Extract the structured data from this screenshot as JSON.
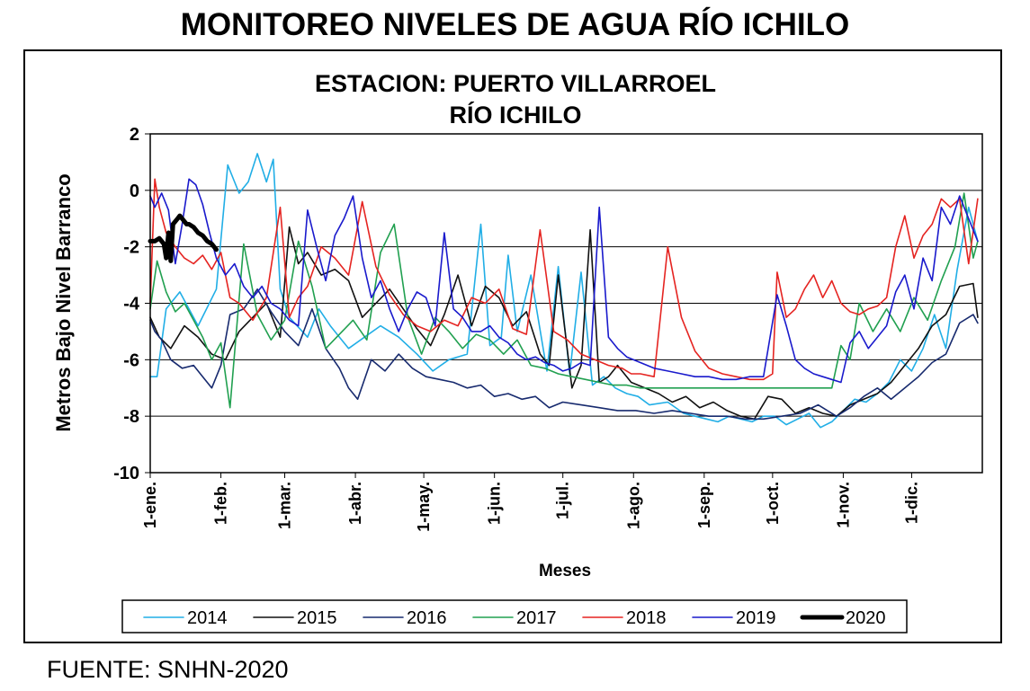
{
  "page": {
    "title": "MONITOREO NIVELES DE AGUA RÍO ICHILO",
    "source": "FUENTE: SNHN-2020"
  },
  "chart_data": {
    "type": "line",
    "title": "ESTACION: PUERTO VILLARROEL",
    "subtitle": "RÍO ICHILO",
    "xlabel": "Meses",
    "ylabel": "Metros Bajo Nivel Barranco",
    "ylim": [
      -10,
      2
    ],
    "yticks": [
      2,
      0,
      -2,
      -4,
      -6,
      -8,
      -10
    ],
    "xlim": [
      1,
      366
    ],
    "x_unit": "day of year",
    "month_ticks": [
      {
        "label": "1-ene.",
        "day": 1
      },
      {
        "label": "1-feb.",
        "day": 32
      },
      {
        "label": "1-mar.",
        "day": 60
      },
      {
        "label": "1-abr.",
        "day": 91
      },
      {
        "label": "1-may.",
        "day": 121
      },
      {
        "label": "1-jun.",
        "day": 152
      },
      {
        "label": "1-jul.",
        "day": 182
      },
      {
        "label": "1-ago.",
        "day": 213
      },
      {
        "label": "1-sep.",
        "day": 244
      },
      {
        "label": "1-oct.",
        "day": 274
      },
      {
        "label": "1-nov.",
        "day": 305
      },
      {
        "label": "1-dic.",
        "day": 335
      }
    ],
    "grid": "horizontal",
    "legend_position": "bottom",
    "series": [
      {
        "name": "2014",
        "color": "#21aee6",
        "width": 1.6,
        "x": [
          1,
          4,
          8,
          14,
          22,
          30,
          35,
          40,
          44,
          48,
          52,
          55,
          58,
          62,
          70,
          75,
          80,
          88,
          95,
          102,
          110,
          118,
          125,
          132,
          140,
          146,
          150,
          155,
          158,
          162,
          168,
          175,
          180,
          185,
          190,
          195,
          200,
          205,
          210,
          215,
          220,
          228,
          235,
          240,
          245,
          250,
          255,
          260,
          265,
          270,
          275,
          280,
          285,
          290,
          295,
          300,
          305,
          310,
          315,
          320,
          325,
          330,
          335,
          340,
          345,
          350,
          355,
          360,
          364
        ],
        "y": [
          -6.6,
          -6.6,
          -4.2,
          -3.6,
          -4.8,
          -3.5,
          0.9,
          -0.1,
          0.3,
          1.3,
          0.3,
          1.1,
          -3.5,
          -4.5,
          -5.2,
          -4.2,
          -4.8,
          -5.6,
          -5.2,
          -4.8,
          -5.2,
          -5.8,
          -6.4,
          -6.0,
          -5.8,
          -1.2,
          -5.5,
          -5.2,
          -2.3,
          -5.0,
          -3.0,
          -6.4,
          -2.7,
          -6.5,
          -2.9,
          -6.9,
          -6.6,
          -7.0,
          -7.2,
          -7.3,
          -7.6,
          -7.5,
          -7.9,
          -8.0,
          -8.1,
          -8.2,
          -8.0,
          -8.1,
          -8.2,
          -8.0,
          -8.0,
          -8.3,
          -8.1,
          -7.9,
          -8.4,
          -8.2,
          -7.8,
          -7.4,
          -7.5,
          -7.2,
          -6.8,
          -6.0,
          -6.4,
          -5.6,
          -4.4,
          -5.6,
          -2.8,
          -0.6,
          -1.8
        ]
      },
      {
        "name": "2015",
        "color": "#111111",
        "width": 1.6,
        "x": [
          1,
          5,
          10,
          16,
          22,
          28,
          34,
          40,
          46,
          52,
          58,
          62,
          66,
          70,
          76,
          82,
          88,
          94,
          100,
          106,
          112,
          118,
          124,
          130,
          136,
          142,
          148,
          154,
          160,
          166,
          172,
          176,
          180,
          186,
          190,
          194,
          198,
          202,
          206,
          212,
          218,
          224,
          230,
          236,
          242,
          248,
          254,
          260,
          266,
          272,
          278,
          284,
          290,
          296,
          302,
          308,
          314,
          320,
          326,
          332,
          338,
          344,
          350,
          356,
          362,
          364
        ],
        "y": [
          -4.5,
          -5.2,
          -5.6,
          -4.8,
          -5.2,
          -5.8,
          -6.0,
          -5.0,
          -4.5,
          -4.0,
          -5.2,
          -1.3,
          -2.6,
          -2.2,
          -3.0,
          -2.8,
          -3.2,
          -4.5,
          -4.0,
          -3.5,
          -4.2,
          -4.9,
          -5.5,
          -4.4,
          -3.0,
          -4.8,
          -3.4,
          -3.8,
          -4.8,
          -4.3,
          -5.8,
          -6.2,
          -3.0,
          -7.0,
          -6.2,
          -1.4,
          -6.8,
          -6.6,
          -6.2,
          -6.8,
          -7.0,
          -7.2,
          -7.5,
          -7.3,
          -7.7,
          -7.5,
          -7.8,
          -8.0,
          -8.1,
          -7.3,
          -7.4,
          -7.9,
          -7.7,
          -7.9,
          -8.0,
          -7.6,
          -7.4,
          -7.2,
          -6.8,
          -6.2,
          -5.6,
          -4.8,
          -4.4,
          -3.4,
          -3.3,
          -4.5
        ]
      },
      {
        "name": "2016",
        "color": "#172a6e",
        "width": 1.6,
        "x": [
          1,
          3,
          6,
          10,
          15,
          20,
          24,
          28,
          32,
          36,
          42,
          48,
          54,
          60,
          66,
          72,
          78,
          84,
          88,
          92,
          98,
          104,
          110,
          116,
          122,
          128,
          134,
          140,
          146,
          152,
          158,
          164,
          170,
          176,
          182,
          190,
          198,
          206,
          214,
          222,
          230,
          238,
          246,
          254,
          262,
          270,
          278,
          286,
          294,
          302,
          308,
          314,
          320,
          326,
          332,
          338,
          344,
          350,
          356,
          362,
          364
        ],
        "y": [
          -4.6,
          -5.0,
          -5.3,
          -6.0,
          -6.3,
          -6.2,
          -6.6,
          -7.0,
          -6.2,
          -4.4,
          -4.2,
          -3.5,
          -4.3,
          -5.0,
          -5.5,
          -4.2,
          -5.6,
          -6.3,
          -7.0,
          -7.4,
          -6.0,
          -6.4,
          -5.8,
          -6.3,
          -6.6,
          -6.7,
          -6.8,
          -7.0,
          -6.9,
          -7.3,
          -7.2,
          -7.4,
          -7.3,
          -7.7,
          -7.5,
          -7.6,
          -7.7,
          -7.8,
          -7.8,
          -7.9,
          -7.8,
          -7.9,
          -8.0,
          -8.0,
          -8.1,
          -8.1,
          -8.0,
          -7.9,
          -7.6,
          -8.0,
          -7.7,
          -7.3,
          -7.0,
          -7.4,
          -7.0,
          -6.6,
          -6.1,
          -5.8,
          -4.7,
          -4.4,
          -4.7
        ]
      },
      {
        "name": "2017",
        "color": "#21a050",
        "width": 1.6,
        "x": [
          1,
          4,
          8,
          12,
          16,
          20,
          24,
          28,
          32,
          36,
          42,
          48,
          54,
          60,
          66,
          72,
          78,
          84,
          90,
          96,
          102,
          108,
          114,
          120,
          126,
          132,
          138,
          144,
          150,
          156,
          162,
          168,
          174,
          180,
          186,
          192,
          198,
          204,
          210,
          216,
          222,
          228,
          234,
          240,
          246,
          252,
          258,
          264,
          270,
          276,
          282,
          288,
          294,
          300,
          304,
          308,
          312,
          318,
          324,
          330,
          336,
          342,
          348,
          354,
          358,
          362,
          364
        ],
        "y": [
          -4.2,
          -2.5,
          -3.6,
          -4.3,
          -4.0,
          -4.6,
          -5.2,
          -6.0,
          -5.4,
          -7.7,
          -1.9,
          -4.4,
          -5.3,
          -4.6,
          -1.8,
          -3.4,
          -5.6,
          -5.1,
          -4.6,
          -5.3,
          -2.2,
          -1.2,
          -4.5,
          -5.8,
          -4.5,
          -5.0,
          -5.6,
          -5.1,
          -5.3,
          -5.8,
          -5.3,
          -6.2,
          -6.3,
          -6.5,
          -6.6,
          -6.7,
          -6.8,
          -6.9,
          -6.9,
          -7.0,
          -7.0,
          -7.0,
          -7.0,
          -7.0,
          -7.0,
          -7.0,
          -7.0,
          -7.0,
          -7.0,
          -7.0,
          -7.0,
          -7.0,
          -7.0,
          -7.0,
          -5.5,
          -6.0,
          -4.0,
          -5.0,
          -4.2,
          -5.0,
          -3.8,
          -4.6,
          -3.2,
          -2.0,
          -0.1,
          -2.4,
          -1.8
        ]
      },
      {
        "name": "2018",
        "color": "#e52421",
        "width": 1.6,
        "x": [
          1,
          3,
          5,
          8,
          12,
          16,
          20,
          24,
          28,
          32,
          36,
          40,
          46,
          52,
          58,
          62,
          66,
          70,
          76,
          82,
          88,
          94,
          100,
          106,
          112,
          118,
          124,
          130,
          136,
          142,
          148,
          154,
          160,
          166,
          172,
          178,
          184,
          190,
          196,
          202,
          208,
          212,
          216,
          222,
          228,
          234,
          240,
          246,
          252,
          258,
          264,
          270,
          274,
          276,
          280,
          284,
          288,
          292,
          296,
          300,
          304,
          308,
          312,
          316,
          320,
          324,
          328,
          332,
          336,
          340,
          344,
          348,
          352,
          356,
          360,
          364
        ],
        "y": [
          -4.0,
          0.4,
          -0.6,
          -1.5,
          -2.0,
          -2.4,
          -2.6,
          -2.3,
          -2.8,
          -2.2,
          -3.8,
          -4.0,
          -4.6,
          -3.8,
          -0.6,
          -4.5,
          -3.8,
          -3.4,
          -2.0,
          -2.4,
          -3.0,
          -0.4,
          -2.7,
          -3.7,
          -4.4,
          -4.8,
          -5.0,
          -4.6,
          -4.8,
          -3.8,
          -4.0,
          -3.5,
          -4.9,
          -5.1,
          -1.4,
          -5.0,
          -5.3,
          -5.8,
          -6.0,
          -6.2,
          -6.3,
          -6.5,
          -6.5,
          -6.6,
          -2.0,
          -4.5,
          -5.7,
          -6.3,
          -6.5,
          -6.6,
          -6.7,
          -6.7,
          -6.5,
          -2.9,
          -4.5,
          -4.2,
          -3.5,
          -3.0,
          -3.8,
          -3.2,
          -4.0,
          -4.3,
          -4.4,
          -4.2,
          -4.1,
          -3.8,
          -2.0,
          -0.9,
          -2.4,
          -1.6,
          -1.2,
          -0.3,
          -0.6,
          -0.3,
          -2.6,
          -0.3
        ]
      },
      {
        "name": "2019",
        "color": "#1a1acc",
        "width": 1.6,
        "x": [
          1,
          3,
          6,
          9,
          12,
          15,
          18,
          21,
          24,
          27,
          30,
          34,
          38,
          42,
          46,
          50,
          54,
          58,
          62,
          66,
          70,
          74,
          78,
          82,
          86,
          90,
          94,
          98,
          102,
          106,
          110,
          114,
          118,
          122,
          126,
          130,
          134,
          138,
          142,
          146,
          150,
          154,
          158,
          162,
          166,
          170,
          174,
          178,
          182,
          186,
          190,
          194,
          198,
          202,
          206,
          210,
          216,
          222,
          228,
          234,
          240,
          246,
          252,
          258,
          264,
          270,
          276,
          280,
          284,
          288,
          292,
          296,
          300,
          304,
          308,
          312,
          316,
          320,
          324,
          328,
          332,
          336,
          340,
          344,
          348,
          352,
          356,
          360,
          364
        ],
        "y": [
          -0.2,
          -0.6,
          -0.1,
          -0.7,
          -2.6,
          -1.2,
          0.4,
          0.2,
          -0.5,
          -1.5,
          -2.4,
          -3.0,
          -2.6,
          -3.4,
          -3.8,
          -3.4,
          -4.0,
          -4.2,
          -4.6,
          -4.8,
          -0.7,
          -2.0,
          -3.2,
          -1.6,
          -1.0,
          -0.2,
          -2.4,
          -3.8,
          -3.2,
          -4.2,
          -5.0,
          -4.2,
          -3.6,
          -3.8,
          -4.8,
          -1.5,
          -4.2,
          -4.5,
          -5.0,
          -5.0,
          -4.8,
          -5.2,
          -5.4,
          -5.8,
          -6.0,
          -5.9,
          -6.1,
          -6.2,
          -6.4,
          -6.3,
          -6.1,
          -6.2,
          -0.6,
          -5.2,
          -5.6,
          -5.9,
          -6.1,
          -6.3,
          -6.4,
          -6.5,
          -6.6,
          -6.6,
          -6.7,
          -6.7,
          -6.6,
          -6.6,
          -3.7,
          -4.8,
          -6.0,
          -6.3,
          -6.5,
          -6.6,
          -6.7,
          -6.8,
          -5.4,
          -5.0,
          -5.6,
          -5.2,
          -4.8,
          -3.6,
          -3.0,
          -4.2,
          -2.4,
          -3.2,
          -0.6,
          -1.2,
          -0.2,
          -1.0,
          -1.8
        ]
      },
      {
        "name": "2020",
        "color": "#000000",
        "width": 5,
        "x": [
          1,
          3,
          5,
          7,
          8,
          9,
          10,
          11,
          12,
          13,
          14,
          15,
          16,
          17,
          18,
          20,
          22,
          24,
          26,
          28,
          30
        ],
        "y": [
          -1.8,
          -1.8,
          -1.7,
          -1.9,
          -2.4,
          -1.5,
          -2.5,
          -1.2,
          -1.1,
          -1.0,
          -0.9,
          -1.0,
          -1.1,
          -1.2,
          -1.2,
          -1.3,
          -1.5,
          -1.6,
          -1.8,
          -1.9,
          -2.1
        ]
      }
    ]
  }
}
